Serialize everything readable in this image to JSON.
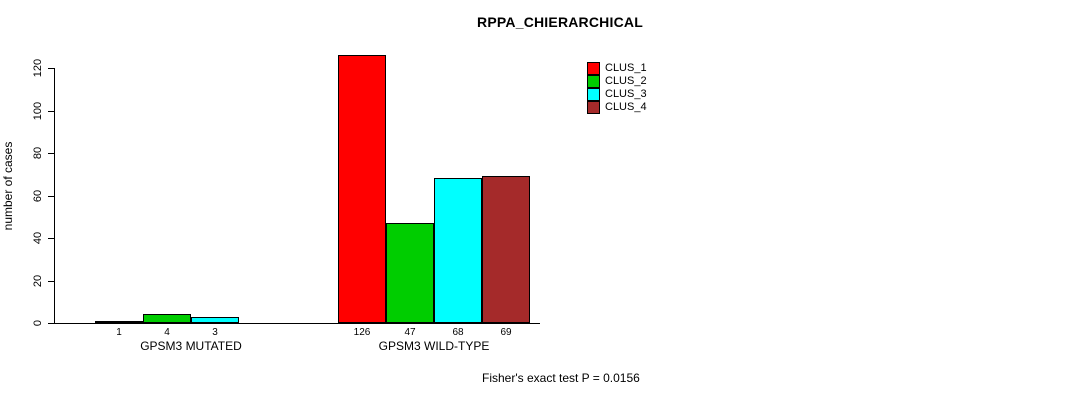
{
  "title": "RPPA_CHIERARCHICAL",
  "ylabel": "number of cases",
  "footer": "Fisher's exact test P = 0.0156",
  "chart_data": {
    "type": "bar",
    "title": "RPPA_CHIERARCHICAL",
    "ylabel": "number of cases",
    "xlabel": "",
    "ylim": [
      0,
      130
    ],
    "yticks": [
      0,
      20,
      40,
      60,
      80,
      100,
      120
    ],
    "grid": false,
    "legend_position": "top-right",
    "series": [
      {
        "name": "CLUS_1",
        "color": "#ff0000"
      },
      {
        "name": "CLUS_2",
        "color": "#00cd00"
      },
      {
        "name": "CLUS_3",
        "color": "#00ffff"
      },
      {
        "name": "CLUS_4",
        "color": "#a52a2a"
      }
    ],
    "groups": [
      {
        "label": "GPSM3 MUTATED",
        "values": [
          1,
          4,
          3,
          0
        ],
        "value_labels": [
          "1",
          "4",
          "3",
          ""
        ]
      },
      {
        "label": "GPSM3 WILD-TYPE",
        "values": [
          126,
          47,
          68,
          69
        ],
        "value_labels": [
          "126",
          "47",
          "68",
          "69"
        ]
      }
    ],
    "annotation": "Fisher's exact test P = 0.0156"
  }
}
